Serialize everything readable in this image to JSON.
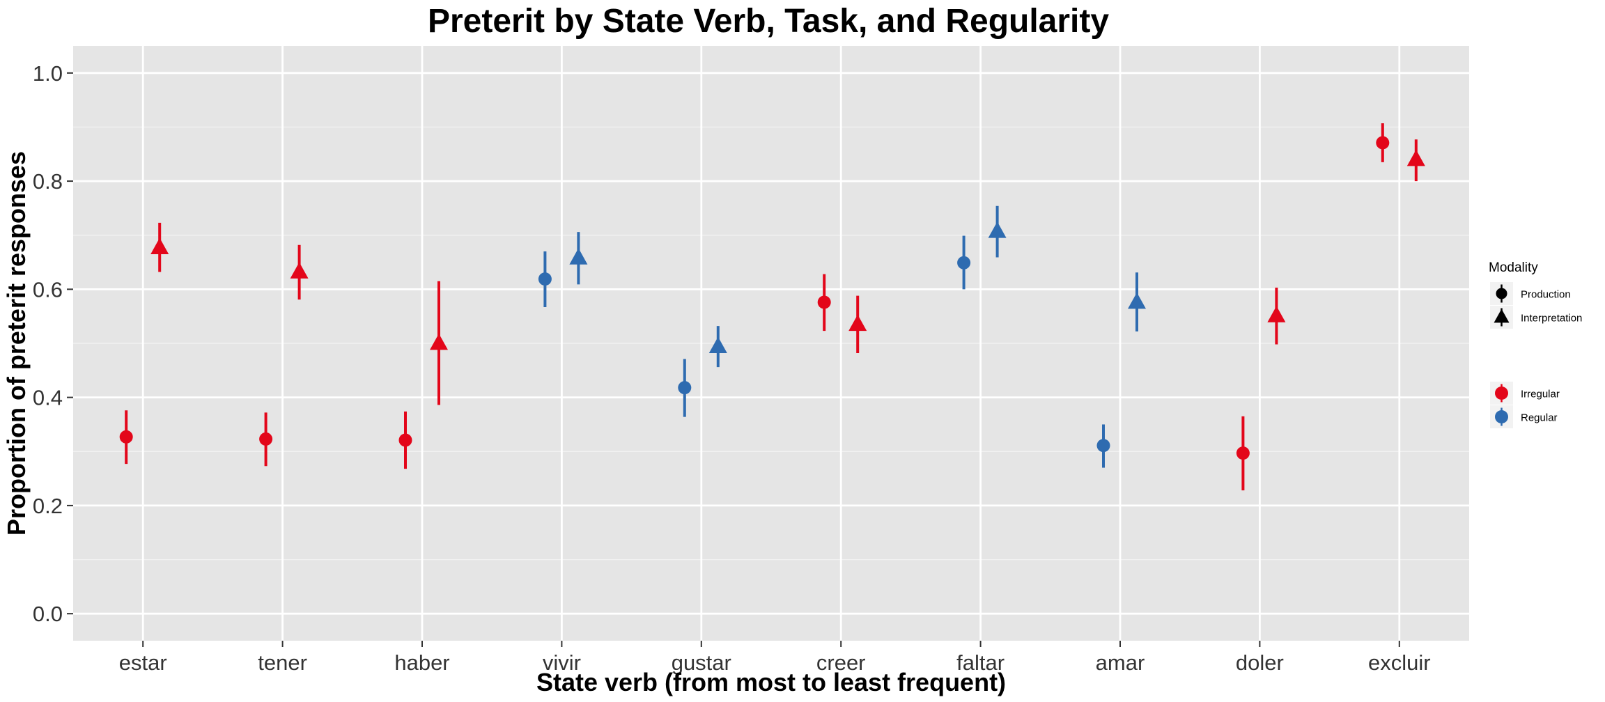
{
  "chart_data": {
    "type": "scatter",
    "title": "Preterit by State Verb, Task, and Regularity",
    "xlabel": "State verb (from most to least frequent)",
    "ylabel": "Proportion of preterit responses",
    "ylim": [
      -0.05,
      1.05
    ],
    "yticks": [
      "0.0",
      "0.2",
      "0.4",
      "0.6",
      "0.8",
      "1.0"
    ],
    "categories": [
      "estar",
      "tener",
      "haber",
      "vivir",
      "gustar",
      "creer",
      "faltar",
      "amar",
      "doler",
      "excluir"
    ],
    "regularity": [
      "Irregular",
      "Irregular",
      "Irregular",
      "Regular",
      "Regular",
      "Irregular",
      "Regular",
      "Regular",
      "Irregular",
      "Irregular"
    ],
    "series": [
      {
        "name": "Production",
        "values": [
          0.327,
          0.323,
          0.321,
          0.619,
          0.418,
          0.576,
          0.649,
          0.311,
          0.297,
          0.871
        ],
        "lower": [
          0.277,
          0.273,
          0.268,
          0.567,
          0.364,
          0.523,
          0.6,
          0.27,
          0.228,
          0.835
        ],
        "upper": [
          0.376,
          0.372,
          0.374,
          0.67,
          0.471,
          0.628,
          0.699,
          0.35,
          0.365,
          0.907
        ]
      },
      {
        "name": "Interpretation",
        "values": [
          0.677,
          0.632,
          0.5,
          0.658,
          0.494,
          0.535,
          0.707,
          0.576,
          0.551,
          0.84
        ],
        "lower": [
          0.632,
          0.581,
          0.386,
          0.609,
          0.456,
          0.482,
          0.659,
          0.522,
          0.498,
          0.8
        ],
        "upper": [
          0.723,
          0.682,
          0.615,
          0.706,
          0.532,
          0.588,
          0.754,
          0.631,
          0.603,
          0.877
        ]
      }
    ],
    "colors": {
      "Irregular": "#e3061a",
      "Regular": "#2e6bb0"
    },
    "legend": {
      "position": "right",
      "shape_title": "Modality",
      "shape_items": [
        "Production",
        "Interpretation"
      ],
      "color_items": [
        "Irregular",
        "Regular"
      ]
    },
    "grid": true,
    "panel_background": "#e5e5e5"
  }
}
